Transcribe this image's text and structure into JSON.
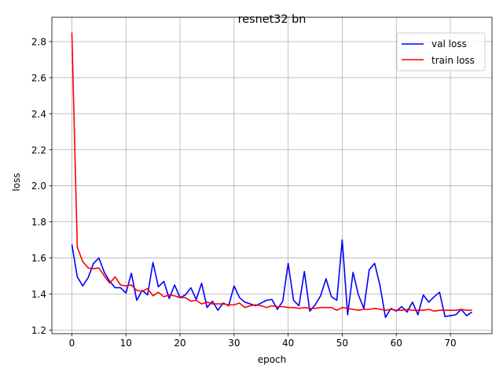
{
  "chart_data": {
    "type": "line",
    "title": "resnet32 bn",
    "xlabel": "epoch",
    "ylabel": "loss",
    "xlim": [
      -3.7,
      77.7
    ],
    "ylim": [
      1.18,
      2.935
    ],
    "xticks": [
      0,
      10,
      20,
      30,
      40,
      50,
      60,
      70
    ],
    "yticks": [
      1.2,
      1.4,
      1.6,
      1.8,
      2.0,
      2.2,
      2.4,
      2.6,
      2.8
    ],
    "grid": true,
    "legend_position": "top-right",
    "x": [
      0,
      1,
      2,
      3,
      4,
      5,
      6,
      7,
      8,
      9,
      10,
      11,
      12,
      13,
      14,
      15,
      16,
      17,
      18,
      19,
      20,
      21,
      22,
      23,
      24,
      25,
      26,
      27,
      28,
      29,
      30,
      31,
      32,
      33,
      34,
      35,
      36,
      37,
      38,
      39,
      40,
      41,
      42,
      43,
      44,
      45,
      46,
      47,
      48,
      49,
      50,
      51,
      52,
      53,
      54,
      55,
      56,
      57,
      58,
      59,
      60,
      61,
      62,
      63,
      64,
      65,
      66,
      67,
      68,
      69,
      70,
      71,
      72,
      73,
      74
    ],
    "series": [
      {
        "name": "val loss",
        "color": "#0000ff",
        "values": [
          1.675,
          1.495,
          1.445,
          1.49,
          1.57,
          1.6,
          1.52,
          1.47,
          1.435,
          1.435,
          1.405,
          1.515,
          1.365,
          1.42,
          1.395,
          1.575,
          1.44,
          1.47,
          1.375,
          1.45,
          1.38,
          1.395,
          1.435,
          1.37,
          1.46,
          1.325,
          1.36,
          1.31,
          1.35,
          1.335,
          1.445,
          1.38,
          1.355,
          1.345,
          1.335,
          1.35,
          1.365,
          1.37,
          1.315,
          1.36,
          1.57,
          1.365,
          1.335,
          1.525,
          1.305,
          1.34,
          1.39,
          1.485,
          1.385,
          1.365,
          1.7,
          1.285,
          1.52,
          1.395,
          1.32,
          1.535,
          1.57,
          1.445,
          1.27,
          1.32,
          1.305,
          1.33,
          1.3,
          1.355,
          1.285,
          1.395,
          1.355,
          1.385,
          1.41,
          1.275,
          1.28,
          1.285,
          1.315,
          1.28,
          1.3
        ]
      },
      {
        "name": "train loss",
        "color": "#ff0000",
        "values": [
          2.85,
          1.66,
          1.58,
          1.545,
          1.54,
          1.545,
          1.5,
          1.46,
          1.495,
          1.45,
          1.445,
          1.45,
          1.42,
          1.415,
          1.43,
          1.39,
          1.41,
          1.385,
          1.395,
          1.39,
          1.38,
          1.38,
          1.36,
          1.365,
          1.345,
          1.355,
          1.345,
          1.345,
          1.345,
          1.34,
          1.34,
          1.35,
          1.325,
          1.335,
          1.34,
          1.335,
          1.325,
          1.335,
          1.33,
          1.33,
          1.325,
          1.325,
          1.32,
          1.325,
          1.32,
          1.32,
          1.325,
          1.325,
          1.325,
          1.31,
          1.325,
          1.32,
          1.315,
          1.31,
          1.315,
          1.315,
          1.32,
          1.315,
          1.31,
          1.315,
          1.31,
          1.31,
          1.315,
          1.31,
          1.31,
          1.31,
          1.315,
          1.305,
          1.31,
          1.31,
          1.31,
          1.31,
          1.315,
          1.31,
          1.31
        ]
      }
    ]
  }
}
